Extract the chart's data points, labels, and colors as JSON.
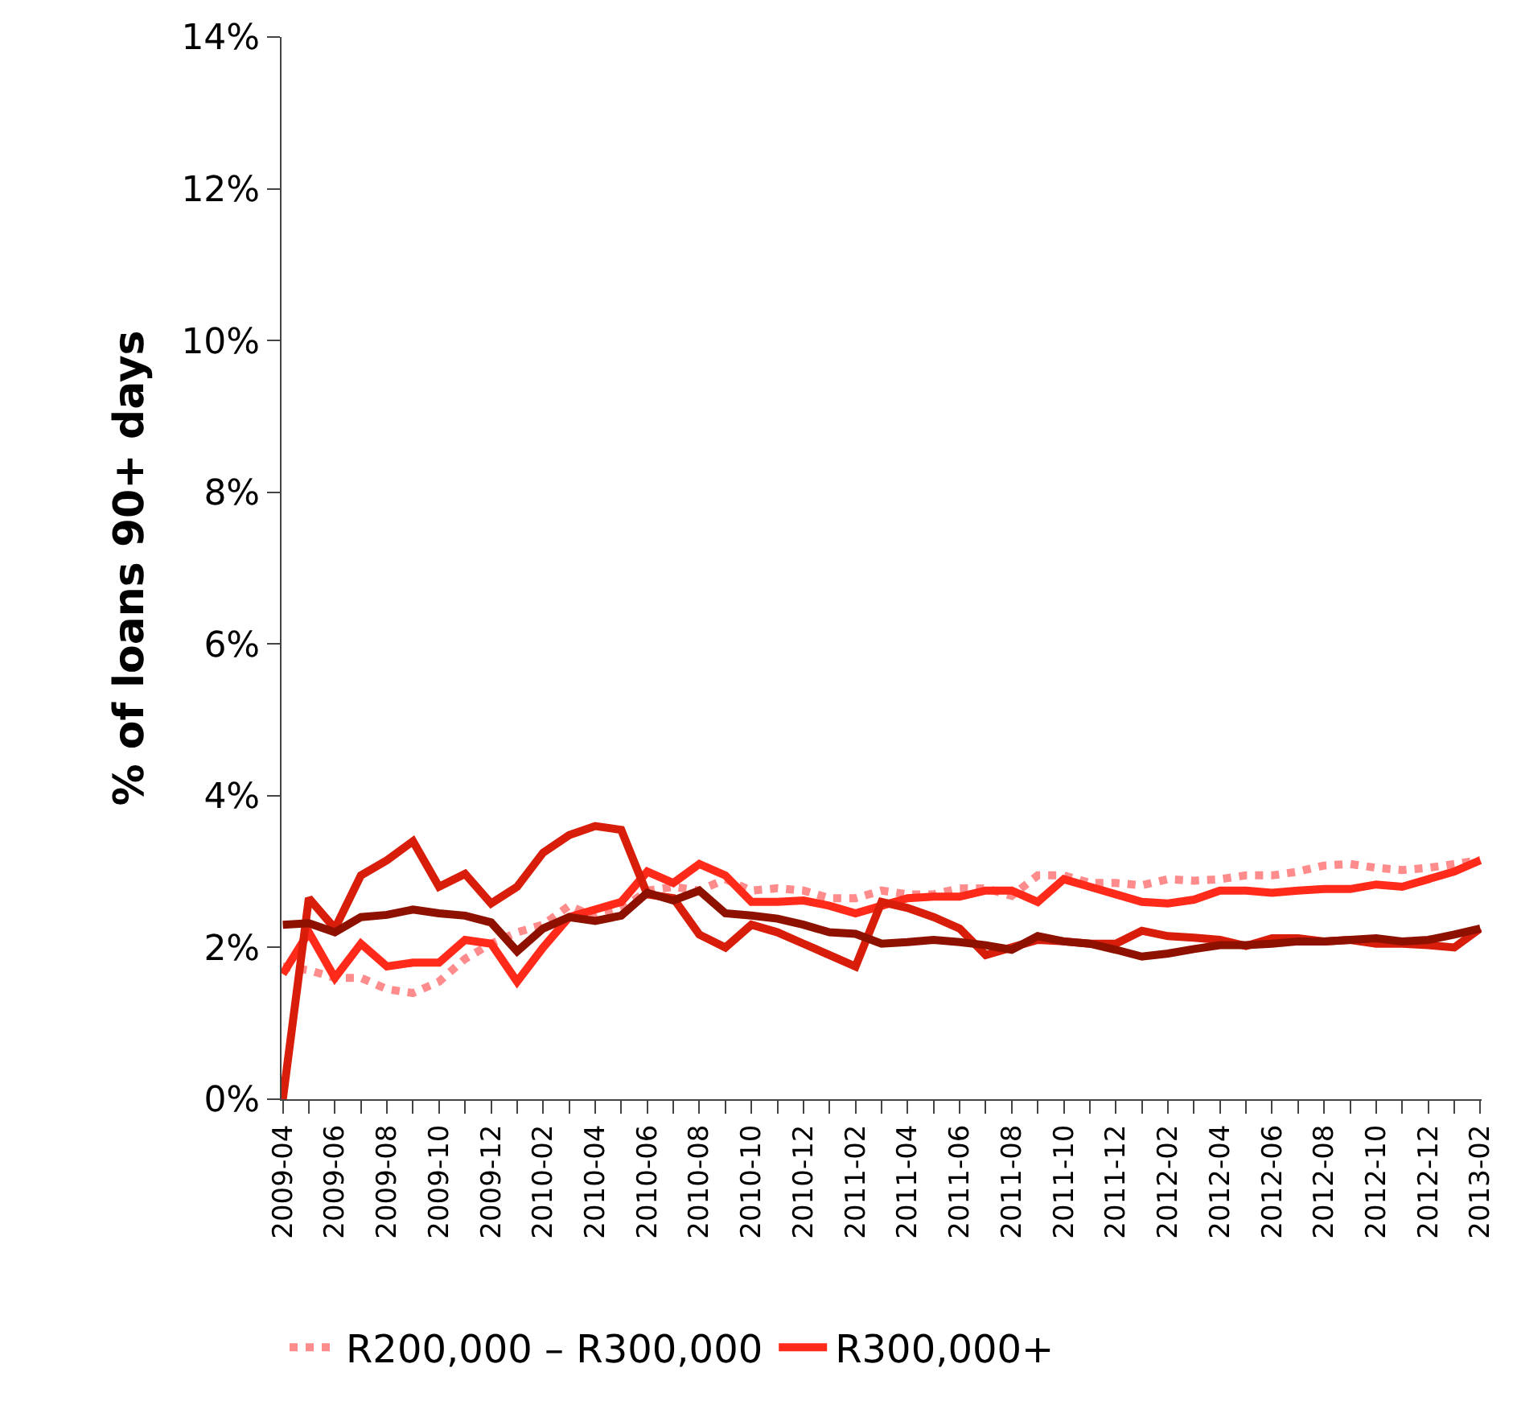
{
  "chart_data": {
    "type": "line",
    "ylabel": "% of loans 90+ days",
    "categories": [
      "2009-04",
      null,
      "2009-06",
      null,
      "2009-08",
      null,
      "2009-10",
      null,
      "2009-12",
      null,
      "2010-02",
      null,
      "2010-04",
      null,
      "2010-06",
      null,
      "2010-08",
      null,
      "2010-10",
      null,
      "2010-12",
      null,
      "2011-02",
      null,
      "2011-04",
      null,
      "2011-06",
      null,
      "2011-08",
      null,
      "2011-10",
      null,
      "2011-12",
      null,
      "2012-02",
      null,
      "2012-04",
      null,
      "2012-06",
      null,
      "2012-08",
      null,
      "2012-10",
      null,
      "2012-12",
      null,
      "2013-02"
    ],
    "series": [
      {
        "name": "R200,000 – R300,000",
        "color": "#ff8c8c",
        "line_style": "dotted",
        "values": [
          1.75,
          1.7,
          1.6,
          1.6,
          1.45,
          1.4,
          1.55,
          1.85,
          2.05,
          2.2,
          2.3,
          2.55,
          2.4,
          2.5,
          2.75,
          2.8,
          2.75,
          2.9,
          2.75,
          2.78,
          2.75,
          2.65,
          2.65,
          2.75,
          2.7,
          2.7,
          2.78,
          2.78,
          2.68,
          2.95,
          2.95,
          2.85,
          2.85,
          2.82,
          2.9,
          2.88,
          2.9,
          2.95,
          2.95,
          3.0,
          3.08,
          3.1,
          3.05,
          3.02,
          3.05,
          3.1,
          3.15
        ]
      },
      {
        "name": "R300,000+",
        "color": "#ff2a1a",
        "line_style": "solid",
        "values": [
          1.65,
          2.2,
          1.6,
          2.05,
          1.75,
          1.8,
          1.8,
          2.1,
          2.05,
          1.55,
          2.0,
          2.4,
          2.5,
          2.6,
          3.0,
          2.85,
          3.1,
          2.95,
          2.6,
          2.6,
          2.62,
          2.55,
          2.45,
          2.55,
          2.65,
          2.67,
          2.67,
          2.75,
          2.75,
          2.6,
          2.9,
          2.8,
          2.7,
          2.6,
          2.58,
          2.63,
          2.75,
          2.75,
          2.72,
          2.75,
          2.77,
          2.77,
          2.83,
          2.8,
          2.9,
          3.0,
          3.15
        ]
      },
      {
        "color": "#d81e0a",
        "line_style": "solid",
        "values": [
          0,
          2.65,
          2.25,
          2.95,
          3.15,
          3.4,
          2.8,
          2.97,
          2.58,
          2.8,
          3.25,
          3.48,
          3.6,
          3.55,
          2.7,
          2.65,
          2.17,
          2.0,
          2.3,
          2.2,
          2.05,
          1.9,
          1.75,
          2.6,
          2.52,
          2.4,
          2.25,
          1.9,
          2.0,
          2.1,
          2.08,
          2.05,
          2.05,
          2.22,
          2.15,
          2.13,
          2.1,
          2.02,
          2.12,
          2.12,
          2.08,
          2.1,
          2.05,
          2.05,
          2.03,
          2.0,
          2.25
        ]
      },
      {
        "color": "#8e1100",
        "line_style": "solid",
        "values": [
          2.3,
          2.32,
          2.2,
          2.4,
          2.43,
          2.5,
          2.45,
          2.42,
          2.33,
          1.95,
          2.25,
          2.4,
          2.35,
          2.42,
          2.72,
          2.62,
          2.75,
          2.45,
          2.42,
          2.38,
          2.3,
          2.2,
          2.18,
          2.05,
          2.07,
          2.1,
          2.07,
          2.03,
          1.97,
          2.15,
          2.08,
          2.05,
          1.97,
          1.88,
          1.92,
          1.98,
          2.03,
          2.03,
          2.05,
          2.08,
          2.08,
          2.1,
          2.12,
          2.08,
          2.1,
          2.17,
          2.25
        ]
      }
    ],
    "ylim": [
      0,
      14
    ],
    "yticks": [
      {
        "value": 0,
        "label": "0%"
      },
      {
        "value": 2,
        "label": "2%"
      },
      {
        "value": 4,
        "label": "4%"
      },
      {
        "value": 6,
        "label": "6%"
      },
      {
        "value": 8,
        "label": "8%"
      },
      {
        "value": 10,
        "label": "10%"
      },
      {
        "value": 12,
        "label": "12%"
      },
      {
        "value": 14,
        "label": "14%"
      }
    ],
    "legend": "bottom",
    "marker": "none"
  }
}
